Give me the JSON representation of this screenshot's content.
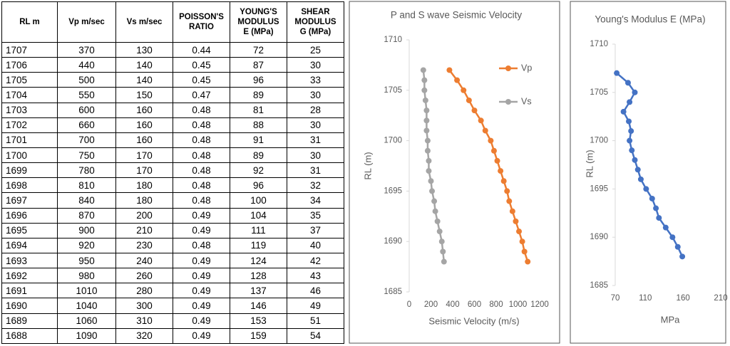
{
  "table": {
    "header": [
      "RL m",
      "Vp m/sec",
      "Vs m/sec",
      "POISSON'S\nRATIO",
      "YOUNG'S\nMODULUS\nE (MPa)",
      "SHEAR\nMODULUS\nG (MPa)"
    ],
    "rows": [
      [
        1707,
        370,
        130,
        0.44,
        72,
        25
      ],
      [
        1706,
        440,
        140,
        0.45,
        87,
        30
      ],
      [
        1705,
        500,
        140,
        0.45,
        96,
        33
      ],
      [
        1704,
        550,
        150,
        0.47,
        89,
        30
      ],
      [
        1703,
        600,
        160,
        0.48,
        81,
        28
      ],
      [
        1702,
        660,
        160,
        0.48,
        88,
        30
      ],
      [
        1701,
        700,
        160,
        0.48,
        91,
        31
      ],
      [
        1700,
        750,
        170,
        0.48,
        89,
        30
      ],
      [
        1699,
        780,
        170,
        0.48,
        92,
        31
      ],
      [
        1698,
        810,
        180,
        0.48,
        96,
        32
      ],
      [
        1697,
        840,
        180,
        0.48,
        100,
        34
      ],
      [
        1696,
        870,
        200,
        0.49,
        104,
        35
      ],
      [
        1695,
        900,
        210,
        0.49,
        111,
        37
      ],
      [
        1694,
        920,
        230,
        0.48,
        119,
        40
      ],
      [
        1693,
        950,
        240,
        0.49,
        124,
        42
      ],
      [
        1692,
        980,
        260,
        0.49,
        128,
        43
      ],
      [
        1691,
        1010,
        280,
        0.49,
        137,
        46
      ],
      [
        1690,
        1040,
        300,
        0.49,
        146,
        49
      ],
      [
        1689,
        1060,
        310,
        0.49,
        153,
        51
      ],
      [
        1688,
        1090,
        320,
        0.49,
        159,
        54
      ]
    ]
  },
  "chart_data": [
    {
      "type": "line",
      "title": "P and S wave Seismic Velocity",
      "x_label": "Seismic Velocity (m/s)",
      "y_label": "RL (m)",
      "xlim": [
        0,
        1200
      ],
      "xticks": [
        0,
        200,
        400,
        600,
        800,
        1000,
        1200
      ],
      "ylim": [
        1685,
        1710
      ],
      "yticks": [
        1685,
        1690,
        1695,
        1700,
        1705,
        1710
      ],
      "legend": "upper right",
      "series": [
        {
          "name": "Vp",
          "color": "#ed7d31",
          "x": [
            370,
            440,
            500,
            550,
            600,
            660,
            700,
            750,
            780,
            810,
            840,
            870,
            900,
            920,
            950,
            980,
            1010,
            1040,
            1060,
            1090
          ],
          "values": [
            1707,
            1706,
            1705,
            1704,
            1703,
            1702,
            1701,
            1700,
            1699,
            1698,
            1697,
            1696,
            1695,
            1694,
            1693,
            1692,
            1691,
            1690,
            1689,
            1688
          ]
        },
        {
          "name": "Vs",
          "color": "#a5a5a5",
          "x": [
            130,
            140,
            140,
            150,
            160,
            160,
            160,
            170,
            170,
            180,
            180,
            200,
            210,
            230,
            240,
            260,
            280,
            300,
            310,
            320
          ],
          "values": [
            1707,
            1706,
            1705,
            1704,
            1703,
            1702,
            1701,
            1700,
            1699,
            1698,
            1697,
            1696,
            1695,
            1694,
            1693,
            1692,
            1691,
            1690,
            1689,
            1688
          ]
        }
      ]
    },
    {
      "type": "line",
      "title": "Young's Modulus E (MPa)",
      "x_label": "MPa",
      "y_label": "RL (m)",
      "xlim": [
        70,
        210
      ],
      "xticks": [
        70,
        110,
        160,
        210
      ],
      "ylim": [
        1685,
        1710
      ],
      "yticks": [
        1685,
        1690,
        1695,
        1700,
        1705,
        1710
      ],
      "series": [
        {
          "color": "#4472c4",
          "x": [
            72,
            87,
            96,
            89,
            81,
            88,
            91,
            89,
            92,
            96,
            100,
            104,
            111,
            119,
            124,
            128,
            137,
            146,
            153,
            159
          ],
          "values": [
            1707,
            1706,
            1705,
            1704,
            1703,
            1702,
            1701,
            1700,
            1699,
            1698,
            1697,
            1696,
            1695,
            1694,
            1693,
            1692,
            1691,
            1690,
            1689,
            1688
          ]
        }
      ]
    }
  ]
}
